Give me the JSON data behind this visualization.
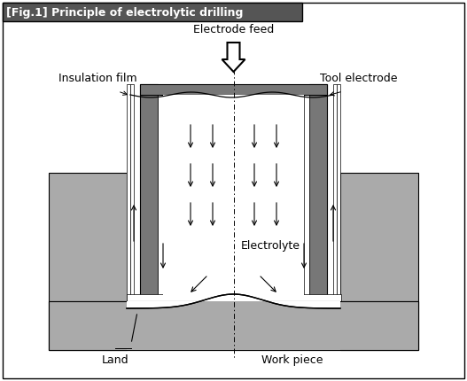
{
  "title": "[Fig.1] Principle of electrolytic drilling",
  "title_bg": "#555555",
  "title_color": "#ffffff",
  "bg_color": "#ffffff",
  "gray": "#aaaaaa",
  "dark_gray": "#777777",
  "white": "#ffffff",
  "black": "#000000",
  "labels": {
    "electrode_feed": "Electrode feed",
    "insulation_film": "Insulation film",
    "tool_electrode": "Tool electrode",
    "electrolyte": "Electrolyte",
    "land": "Land",
    "work_piece": "Work piece"
  },
  "figsize": [
    5.27,
    4.3
  ],
  "dpi": 100
}
